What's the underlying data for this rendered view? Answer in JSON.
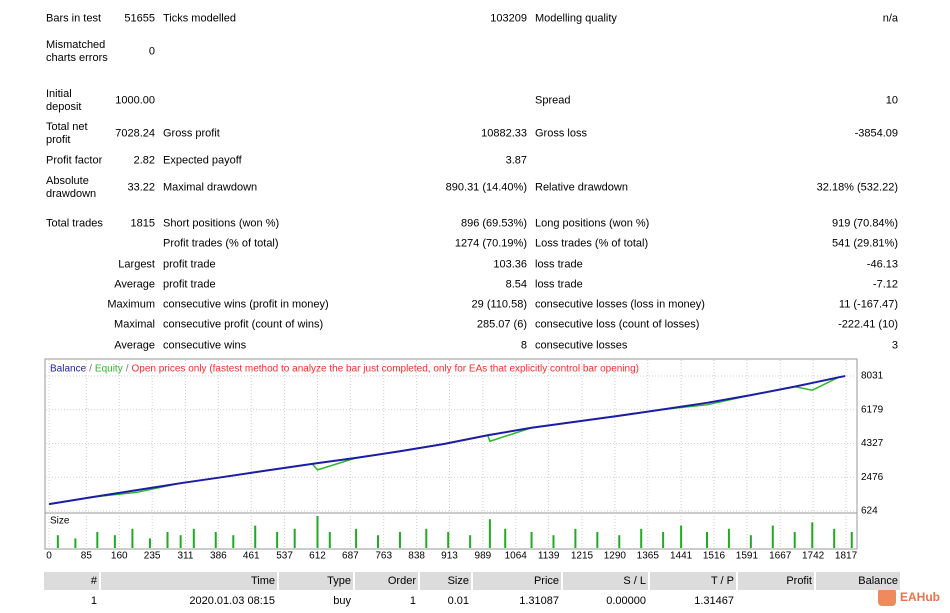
{
  "report": {
    "rows": [
      [
        "Bars in test",
        "51655",
        "Ticks modelled",
        "103209",
        "Modelling quality",
        "n/a"
      ],
      [
        "Mismatched charts errors",
        "0",
        null,
        null,
        null,
        null
      ],
      [
        "Initial deposit",
        "1000.00",
        null,
        null,
        "Spread",
        "10"
      ],
      [
        "Total net profit",
        "7028.24",
        "Gross profit",
        "10882.33",
        "Gross loss",
        "-3854.09"
      ],
      [
        "Profit factor",
        "2.82",
        "Expected payoff",
        "3.87",
        null,
        null
      ],
      [
        "Absolute drawdown",
        "33.22",
        "Maximal drawdown",
        "890.31 (14.40%)",
        "Relative drawdown",
        "32.18% (532.22)"
      ],
      [
        "Total trades",
        "1815",
        "Short positions (won %)",
        "896 (69.53%)",
        "Long positions (won %)",
        "919 (70.84%)"
      ],
      [
        null,
        null,
        "Profit trades (% of total)",
        "1274 (70.19%)",
        "Loss trades (% of total)",
        "541 (29.81%)"
      ],
      [
        null,
        "Largest",
        "profit trade",
        "103.36",
        "loss trade",
        "-46.13"
      ],
      [
        null,
        "Average",
        "profit trade",
        "8.54",
        "loss trade",
        "-7.12"
      ],
      [
        null,
        "Maximum",
        "consecutive wins (profit in money)",
        "29 (110.58)",
        "consecutive losses (loss in money)",
        "11 (-167.47)"
      ],
      [
        null,
        "Maximal",
        "consecutive profit (count of wins)",
        "285.07 (6)",
        "consecutive loss (count of losses)",
        "-222.41 (10)"
      ],
      [
        null,
        "Average",
        "consecutive wins",
        "8",
        "consecutive losses",
        "3"
      ]
    ]
  },
  "chart_data": [
    {
      "type": "line",
      "note": "Open prices only (fastest method to analyze the bar just completed, only for EAs that explicitly control bar opening)",
      "separator": "/",
      "x": [
        0,
        100,
        200,
        300,
        400,
        500,
        600,
        612,
        700,
        800,
        900,
        1000,
        1005,
        1100,
        1200,
        1300,
        1400,
        1500,
        1600,
        1700,
        1740,
        1800,
        1815
      ],
      "series": [
        {
          "name": "Balance",
          "color": "#1c1ca6",
          "values": [
            1000,
            1390,
            1770,
            2150,
            2500,
            2860,
            3210,
            3250,
            3540,
            3900,
            4300,
            4780,
            4800,
            5190,
            5520,
            5850,
            6200,
            6560,
            6980,
            7450,
            7650,
            7960,
            8028
          ]
        },
        {
          "name": "Equity",
          "color": "#2eb82e",
          "values": [
            1000,
            1390,
            1650,
            2150,
            2500,
            2860,
            3210,
            2880,
            3540,
            3900,
            4300,
            4780,
            4450,
            5190,
            5520,
            5850,
            6200,
            6450,
            6980,
            7450,
            7250,
            7960,
            8028
          ]
        }
      ],
      "xlim": [
        -7,
        1842
      ],
      "xticks": [
        0,
        85,
        160,
        235,
        311,
        386,
        461,
        537,
        612,
        687,
        763,
        838,
        913,
        989,
        1064,
        1139,
        1215,
        1290,
        1365,
        1441,
        1516,
        1591,
        1667,
        1742,
        1817
      ],
      "ylim": [
        569,
        8854
      ],
      "yticks": [
        624,
        2476,
        4327,
        6179,
        8031
      ],
      "grid": true
    },
    {
      "type": "bar",
      "title": "Size",
      "color": "#22aa22",
      "x": [
        20,
        60,
        110,
        150,
        190,
        230,
        270,
        300,
        330,
        380,
        420,
        470,
        520,
        560,
        612,
        640,
        700,
        750,
        800,
        860,
        910,
        960,
        1005,
        1040,
        1100,
        1150,
        1200,
        1250,
        1300,
        1350,
        1400,
        1441,
        1500,
        1550,
        1600,
        1650,
        1700,
        1740,
        1790,
        1830
      ],
      "values": [
        0.04,
        0.03,
        0.05,
        0.04,
        0.06,
        0.03,
        0.05,
        0.04,
        0.06,
        0.05,
        0.04,
        0.07,
        0.05,
        0.06,
        0.1,
        0.05,
        0.06,
        0.04,
        0.05,
        0.06,
        0.05,
        0.04,
        0.09,
        0.06,
        0.05,
        0.04,
        0.06,
        0.05,
        0.04,
        0.06,
        0.05,
        0.07,
        0.05,
        0.06,
        0.04,
        0.07,
        0.05,
        0.08,
        0.06,
        0.05
      ],
      "xlim": [
        -7,
        1842
      ],
      "ylim": [
        0,
        0.1
      ]
    }
  ],
  "trades": {
    "header": [
      "#",
      "Time",
      "Type",
      "Order",
      "Size",
      "Price",
      "S / L",
      "T / P",
      "Profit",
      "Balance"
    ],
    "rows": [
      [
        "1",
        "2020.01.03 08:15",
        "buy",
        "1",
        "0.01",
        "1.31087",
        "0.00000",
        "1.31467",
        null,
        null
      ]
    ]
  },
  "watermark": "EAHub"
}
